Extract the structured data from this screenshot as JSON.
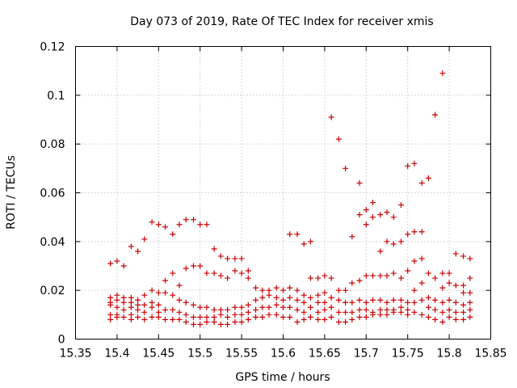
{
  "chart_data": {
    "type": "scatter",
    "title": "Day 073 of 2019, Rate Of TEC Index for receiver xmis",
    "xlabel": "GPS time / hours",
    "ylabel": "ROTI / TECUs",
    "xlim": [
      15.35,
      15.85
    ],
    "ylim": [
      0,
      0.12
    ],
    "xticks": [
      "15.35",
      "15.4",
      "15.45",
      "15.5",
      "15.55",
      "15.6",
      "15.65",
      "15.7",
      "15.75",
      "15.8",
      "15.85"
    ],
    "yticks": [
      "0",
      "0.02",
      "0.04",
      "0.06",
      "0.08",
      "0.1",
      "0.12"
    ],
    "grid": true,
    "marker": "plus",
    "color": "#cc0000",
    "series": [
      {
        "name": "ROTI",
        "points": [
          [
            15.392,
            0.031
          ],
          [
            15.392,
            0.017
          ],
          [
            15.392,
            0.015
          ],
          [
            15.392,
            0.014
          ],
          [
            15.392,
            0.01
          ],
          [
            15.392,
            0.008
          ],
          [
            15.4,
            0.032
          ],
          [
            15.4,
            0.018
          ],
          [
            15.4,
            0.016
          ],
          [
            15.4,
            0.013
          ],
          [
            15.4,
            0.01
          ],
          [
            15.4,
            0.009
          ],
          [
            15.408,
            0.03
          ],
          [
            15.408,
            0.017
          ],
          [
            15.408,
            0.015
          ],
          [
            15.408,
            0.012
          ],
          [
            15.408,
            0.009
          ],
          [
            15.417,
            0.038
          ],
          [
            15.417,
            0.017
          ],
          [
            15.417,
            0.015
          ],
          [
            15.417,
            0.013
          ],
          [
            15.417,
            0.01
          ],
          [
            15.417,
            0.008
          ],
          [
            15.425,
            0.036
          ],
          [
            15.425,
            0.016
          ],
          [
            15.425,
            0.014
          ],
          [
            15.425,
            0.012
          ],
          [
            15.425,
            0.009
          ],
          [
            15.433,
            0.041
          ],
          [
            15.433,
            0.018
          ],
          [
            15.433,
            0.014
          ],
          [
            15.433,
            0.011
          ],
          [
            15.433,
            0.008
          ],
          [
            15.442,
            0.048
          ],
          [
            15.442,
            0.02
          ],
          [
            15.442,
            0.015
          ],
          [
            15.442,
            0.013
          ],
          [
            15.442,
            0.009
          ],
          [
            15.45,
            0.047
          ],
          [
            15.45,
            0.019
          ],
          [
            15.45,
            0.014
          ],
          [
            15.45,
            0.011
          ],
          [
            15.45,
            0.009
          ],
          [
            15.458,
            0.046
          ],
          [
            15.458,
            0.024
          ],
          [
            15.458,
            0.019
          ],
          [
            15.458,
            0.012
          ],
          [
            15.458,
            0.008
          ],
          [
            15.467,
            0.043
          ],
          [
            15.467,
            0.027
          ],
          [
            15.467,
            0.018
          ],
          [
            15.467,
            0.012
          ],
          [
            15.467,
            0.008
          ],
          [
            15.475,
            0.047
          ],
          [
            15.475,
            0.022
          ],
          [
            15.475,
            0.016
          ],
          [
            15.475,
            0.011
          ],
          [
            15.475,
            0.008
          ],
          [
            15.483,
            0.049
          ],
          [
            15.483,
            0.029
          ],
          [
            15.483,
            0.015
          ],
          [
            15.483,
            0.01
          ],
          [
            15.483,
            0.007
          ],
          [
            15.492,
            0.049
          ],
          [
            15.492,
            0.03
          ],
          [
            15.492,
            0.014
          ],
          [
            15.492,
            0.009
          ],
          [
            15.492,
            0.006
          ],
          [
            15.5,
            0.047
          ],
          [
            15.5,
            0.03
          ],
          [
            15.5,
            0.013
          ],
          [
            15.5,
            0.009
          ],
          [
            15.5,
            0.006
          ],
          [
            15.508,
            0.047
          ],
          [
            15.508,
            0.027
          ],
          [
            15.508,
            0.013
          ],
          [
            15.508,
            0.009
          ],
          [
            15.508,
            0.007
          ],
          [
            15.517,
            0.037
          ],
          [
            15.517,
            0.027
          ],
          [
            15.517,
            0.012
          ],
          [
            15.517,
            0.009
          ],
          [
            15.517,
            0.007
          ],
          [
            15.525,
            0.034
          ],
          [
            15.525,
            0.026
          ],
          [
            15.525,
            0.012
          ],
          [
            15.525,
            0.01
          ],
          [
            15.525,
            0.006
          ],
          [
            15.533,
            0.033
          ],
          [
            15.533,
            0.025
          ],
          [
            15.533,
            0.012
          ],
          [
            15.533,
            0.009
          ],
          [
            15.533,
            0.006
          ],
          [
            15.542,
            0.033
          ],
          [
            15.542,
            0.028
          ],
          [
            15.542,
            0.013
          ],
          [
            15.542,
            0.01
          ],
          [
            15.542,
            0.007
          ],
          [
            15.55,
            0.033
          ],
          [
            15.55,
            0.027
          ],
          [
            15.55,
            0.013
          ],
          [
            15.55,
            0.01
          ],
          [
            15.55,
            0.007
          ],
          [
            15.558,
            0.028
          ],
          [
            15.558,
            0.025
          ],
          [
            15.558,
            0.014
          ],
          [
            15.558,
            0.011
          ],
          [
            15.558,
            0.008
          ],
          [
            15.567,
            0.021
          ],
          [
            15.567,
            0.016
          ],
          [
            15.567,
            0.012
          ],
          [
            15.567,
            0.009
          ],
          [
            15.575,
            0.02
          ],
          [
            15.575,
            0.017
          ],
          [
            15.575,
            0.013
          ],
          [
            15.575,
            0.009
          ],
          [
            15.583,
            0.02
          ],
          [
            15.583,
            0.018
          ],
          [
            15.583,
            0.013
          ],
          [
            15.583,
            0.01
          ],
          [
            15.592,
            0.021
          ],
          [
            15.592,
            0.017
          ],
          [
            15.592,
            0.014
          ],
          [
            15.592,
            0.01
          ],
          [
            15.6,
            0.02
          ],
          [
            15.6,
            0.016
          ],
          [
            15.6,
            0.013
          ],
          [
            15.6,
            0.009
          ],
          [
            15.608,
            0.043
          ],
          [
            15.608,
            0.021
          ],
          [
            15.608,
            0.017
          ],
          [
            15.608,
            0.013
          ],
          [
            15.608,
            0.009
          ],
          [
            15.617,
            0.043
          ],
          [
            15.617,
            0.02
          ],
          [
            15.617,
            0.016
          ],
          [
            15.617,
            0.012
          ],
          [
            15.617,
            0.007
          ],
          [
            15.625,
            0.039
          ],
          [
            15.625,
            0.018
          ],
          [
            15.625,
            0.015
          ],
          [
            15.625,
            0.011
          ],
          [
            15.625,
            0.008
          ],
          [
            15.633,
            0.04
          ],
          [
            15.633,
            0.025
          ],
          [
            15.633,
            0.017
          ],
          [
            15.633,
            0.013
          ],
          [
            15.633,
            0.009
          ],
          [
            15.642,
            0.025
          ],
          [
            15.642,
            0.018
          ],
          [
            15.642,
            0.015
          ],
          [
            15.642,
            0.011
          ],
          [
            15.642,
            0.008
          ],
          [
            15.65,
            0.026
          ],
          [
            15.65,
            0.019
          ],
          [
            15.65,
            0.015
          ],
          [
            15.65,
            0.012
          ],
          [
            15.65,
            0.008
          ],
          [
            15.658,
            0.091
          ],
          [
            15.658,
            0.025
          ],
          [
            15.658,
            0.017
          ],
          [
            15.658,
            0.013
          ],
          [
            15.658,
            0.009
          ],
          [
            15.667,
            0.082
          ],
          [
            15.667,
            0.02
          ],
          [
            15.667,
            0.016
          ],
          [
            15.667,
            0.011
          ],
          [
            15.667,
            0.007
          ],
          [
            15.675,
            0.07
          ],
          [
            15.675,
            0.02
          ],
          [
            15.675,
            0.015
          ],
          [
            15.675,
            0.011
          ],
          [
            15.675,
            0.007
          ],
          [
            15.683,
            0.042
          ],
          [
            15.683,
            0.023
          ],
          [
            15.683,
            0.015
          ],
          [
            15.683,
            0.011
          ],
          [
            15.683,
            0.008
          ],
          [
            15.692,
            0.064
          ],
          [
            15.692,
            0.051
          ],
          [
            15.692,
            0.024
          ],
          [
            15.692,
            0.016
          ],
          [
            15.692,
            0.012
          ],
          [
            15.692,
            0.009
          ],
          [
            15.7,
            0.053
          ],
          [
            15.7,
            0.047
          ],
          [
            15.7,
            0.026
          ],
          [
            15.7,
            0.015
          ],
          [
            15.7,
            0.012
          ],
          [
            15.7,
            0.009
          ],
          [
            15.708,
            0.056
          ],
          [
            15.708,
            0.05
          ],
          [
            15.708,
            0.026
          ],
          [
            15.708,
            0.016
          ],
          [
            15.708,
            0.011
          ],
          [
            15.708,
            0.01
          ],
          [
            15.717,
            0.051
          ],
          [
            15.717,
            0.036
          ],
          [
            15.717,
            0.026
          ],
          [
            15.717,
            0.016
          ],
          [
            15.717,
            0.012
          ],
          [
            15.717,
            0.01
          ],
          [
            15.725,
            0.052
          ],
          [
            15.725,
            0.04
          ],
          [
            15.725,
            0.026
          ],
          [
            15.725,
            0.015
          ],
          [
            15.725,
            0.012
          ],
          [
            15.725,
            0.01
          ],
          [
            15.733,
            0.05
          ],
          [
            15.733,
            0.039
          ],
          [
            15.733,
            0.027
          ],
          [
            15.733,
            0.016
          ],
          [
            15.733,
            0.012
          ],
          [
            15.733,
            0.011
          ],
          [
            15.742,
            0.055
          ],
          [
            15.742,
            0.04
          ],
          [
            15.742,
            0.025
          ],
          [
            15.742,
            0.016
          ],
          [
            15.742,
            0.013
          ],
          [
            15.742,
            0.011
          ],
          [
            15.75,
            0.071
          ],
          [
            15.75,
            0.043
          ],
          [
            15.75,
            0.028
          ],
          [
            15.75,
            0.015
          ],
          [
            15.75,
            0.012
          ],
          [
            15.75,
            0.01
          ],
          [
            15.758,
            0.072
          ],
          [
            15.758,
            0.044
          ],
          [
            15.758,
            0.032
          ],
          [
            15.758,
            0.02
          ],
          [
            15.758,
            0.015
          ],
          [
            15.758,
            0.011
          ],
          [
            15.767,
            0.064
          ],
          [
            15.767,
            0.044
          ],
          [
            15.767,
            0.033
          ],
          [
            15.767,
            0.023
          ],
          [
            15.767,
            0.016
          ],
          [
            15.767,
            0.01
          ],
          [
            15.775,
            0.066
          ],
          [
            15.775,
            0.027
          ],
          [
            15.775,
            0.017
          ],
          [
            15.775,
            0.013
          ],
          [
            15.775,
            0.009
          ],
          [
            15.783,
            0.092
          ],
          [
            15.783,
            0.025
          ],
          [
            15.783,
            0.016
          ],
          [
            15.783,
            0.012
          ],
          [
            15.783,
            0.008
          ],
          [
            15.792,
            0.109
          ],
          [
            15.792,
            0.027
          ],
          [
            15.792,
            0.021
          ],
          [
            15.792,
            0.015
          ],
          [
            15.792,
            0.011
          ],
          [
            15.792,
            0.007
          ],
          [
            15.8,
            0.027
          ],
          [
            15.8,
            0.023
          ],
          [
            15.8,
            0.016
          ],
          [
            15.8,
            0.012
          ],
          [
            15.8,
            0.009
          ],
          [
            15.808,
            0.035
          ],
          [
            15.808,
            0.022
          ],
          [
            15.808,
            0.015
          ],
          [
            15.808,
            0.011
          ],
          [
            15.808,
            0.008
          ],
          [
            15.817,
            0.034
          ],
          [
            15.817,
            0.022
          ],
          [
            15.817,
            0.019
          ],
          [
            15.817,
            0.014
          ],
          [
            15.817,
            0.011
          ],
          [
            15.817,
            0.008
          ],
          [
            15.825,
            0.033
          ],
          [
            15.825,
            0.025
          ],
          [
            15.825,
            0.019
          ],
          [
            15.825,
            0.015
          ],
          [
            15.825,
            0.012
          ],
          [
            15.825,
            0.009
          ]
        ]
      }
    ]
  }
}
